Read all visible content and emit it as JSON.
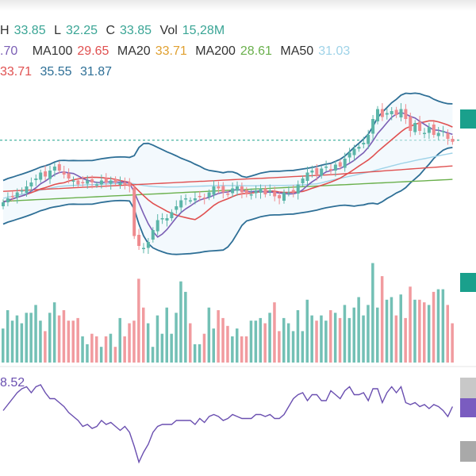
{
  "ohlc_legend": {
    "high_label": "H",
    "high_value": "33.85",
    "low_label": "L",
    "low_value": "32.25",
    "close_label": "C",
    "close_value": "33.85",
    "vol_label": "Vol",
    "vol_value": "15,28M"
  },
  "ma_legend": {
    "first_value": ".70",
    "ma100_label": "MA100",
    "ma100_value": "29.65",
    "ma20_label": "MA20",
    "ma20_value": "33.71",
    "ma200_label": "MA200",
    "ma200_value": "28.61",
    "ma50_label": "MA50",
    "ma50_value": "31.03"
  },
  "bb_legend": {
    "mid_value": "33.71",
    "upper_value": "35.55",
    "lower_value": "31.87"
  },
  "rsi_legend": {
    "value": "8.52"
  },
  "colors": {
    "up": "#5bb5a8",
    "down": "#ef8a8e",
    "ma_purple": "#7b5fb5",
    "ma_red": "#e05050",
    "ma_teal": "#9fd3e8",
    "ma_green": "#6ab04c",
    "ma_orange": "#e0a030",
    "band": "#2e6f96",
    "rsi": "#6a4fb0",
    "last_price": "#1aa08c"
  },
  "chart_data": {
    "type": "candlestick",
    "closes": [
      30.8,
      31.0,
      31.1,
      31.3,
      31.4,
      31.6,
      31.8,
      32.0,
      32.3,
      32.1,
      32.4,
      32.6,
      32.4,
      32.2,
      32.0,
      31.9,
      31.7,
      31.8,
      31.9,
      31.8,
      31.7,
      31.9,
      31.8,
      31.9,
      31.8,
      31.8,
      31.7,
      31.6,
      29.1,
      28.6,
      28.5,
      28.8,
      29.4,
      29.9,
      30.0,
      30.0,
      30.3,
      30.6,
      30.9,
      31.0,
      30.9,
      31.0,
      31.1,
      31.0,
      31.3,
      31.6,
      31.5,
      31.3,
      31.2,
      31.5,
      31.6,
      31.3,
      31.2,
      31.2,
      31.4,
      31.5,
      31.2,
      31.4,
      31.1,
      31.0,
      31.3,
      31.3,
      31.3,
      31.7,
      32.0,
      32.3,
      32.4,
      32.2,
      32.5,
      32.6,
      32.4,
      32.7,
      32.6,
      33.0,
      33.3,
      33.5,
      33.6,
      33.8,
      34.2,
      35.0,
      35.5,
      35.1,
      35.3,
      35.4,
      35.2,
      35.5,
      35.0,
      34.4,
      34.8,
      34.4,
      34.3,
      34.6,
      34.2,
      34.3,
      34.4,
      34.0,
      33.85
    ],
    "volumes": [
      1.3,
      2.0,
      1.6,
      1.8,
      1.5,
      1.9,
      1.9,
      2.2,
      1.6,
      1.2,
      1.9,
      2.3,
      1.8,
      2.0,
      1.6,
      1.6,
      1.7,
      1.0,
      0.7,
      1.1,
      1.0,
      0.6,
      1.0,
      1.1,
      0.6,
      1.7,
      1.0,
      1.5,
      1.6,
      3.2,
      2.1,
      1.5,
      0.6,
      1.8,
      1.1,
      2.1,
      1.1,
      1.9,
      3.1,
      2.7,
      1.5,
      0.7,
      0.7,
      1.1,
      2.1,
      1.3,
      2.0,
      1.7,
      1.4,
      1.0,
      1.3,
      1.0,
      1.0,
      1.6,
      1.6,
      1.7,
      1.5,
      1.9,
      2.3,
      1.2,
      1.7,
      1.5,
      1.2,
      2.0,
      1.2,
      2.4,
      1.8,
      1.6,
      1.8,
      1.6,
      2.0,
      1.9,
      1.7,
      2.2,
      1.7,
      2.1,
      2.5,
      1.8,
      2.2,
      3.8,
      2.1,
      3.3,
      2.4,
      2.5,
      1.8,
      2.6,
      1.7,
      2.9,
      2.4,
      2.4,
      2.3,
      2.2,
      2.7,
      2.8,
      2.8,
      2.2,
      1.5
    ],
    "rsi": [
      51,
      54,
      57,
      60,
      62,
      63,
      60,
      63,
      64,
      60,
      57,
      57,
      55,
      53,
      50,
      48,
      46,
      43,
      44,
      42,
      43,
      46,
      44,
      45,
      43,
      41,
      43,
      40,
      33,
      25,
      30,
      34,
      40,
      43,
      44,
      44,
      44,
      46,
      46,
      46,
      46,
      44,
      47,
      45,
      48,
      49,
      48,
      46,
      47,
      49,
      48,
      47,
      47,
      47,
      49,
      49,
      48,
      49,
      47,
      47,
      49,
      53,
      57,
      59,
      60,
      56,
      59,
      59,
      56,
      56,
      61,
      59,
      57,
      61,
      63,
      59,
      59,
      60,
      56,
      62,
      62,
      55,
      60,
      63,
      60,
      63,
      55,
      54,
      55,
      53,
      54,
      52,
      54,
      53,
      51,
      48,
      53
    ],
    "ma20_last": 33.71,
    "ma50_last": 31.03,
    "ma100_last": 29.65,
    "ma200_last": 28.61,
    "bb_upper_last": 35.55,
    "bb_lower_last": 31.87,
    "bb_mid_last": 33.71,
    "last_close": 33.85,
    "prev_high": 33.85
  }
}
